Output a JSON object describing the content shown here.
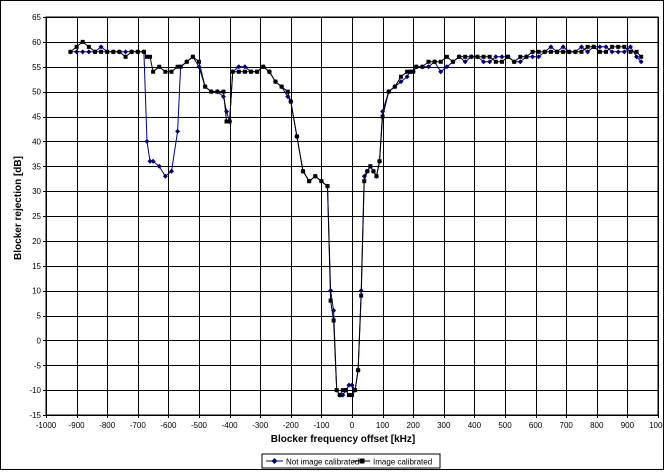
{
  "chart_data": {
    "type": "line",
    "title": "",
    "xlabel": "Blocker frequency offset [kHz]",
    "ylabel": "Blocker rejection [dB]",
    "xlim": [
      -1000,
      1000
    ],
    "ylim": [
      -15,
      65
    ],
    "x_ticks": [
      -1000,
      -900,
      -800,
      -700,
      -600,
      -500,
      -400,
      -300,
      -200,
      -100,
      0,
      100,
      200,
      300,
      400,
      500,
      600,
      700,
      800,
      900,
      1000
    ],
    "y_ticks": [
      -15,
      -10,
      -5,
      0,
      5,
      10,
      15,
      20,
      25,
      30,
      35,
      40,
      45,
      50,
      55,
      60,
      65
    ],
    "grid": true,
    "legend_position": "bottom-center",
    "colors": {
      "not_calibrated": "#000080",
      "calibrated": "#000000",
      "grid": "#000000"
    },
    "series": [
      {
        "name": "Not image calibrated",
        "marker": "diamond",
        "x": [
          -920,
          -900,
          -880,
          -860,
          -840,
          -820,
          -800,
          -780,
          -760,
          -740,
          -720,
          -700,
          -680,
          -670,
          -660,
          -650,
          -630,
          -610,
          -590,
          -570,
          -560,
          -540,
          -520,
          -500,
          -480,
          -460,
          -440,
          -420,
          -410,
          -400,
          -390,
          -370,
          -350,
          -330,
          -310,
          -290,
          -270,
          -250,
          -230,
          -210,
          -200,
          -180,
          -160,
          -140,
          -120,
          -100,
          -80,
          -70,
          -60,
          -50,
          -40,
          -30,
          -20,
          -10,
          0,
          10,
          20,
          30,
          40,
          50,
          60,
          70,
          80,
          90,
          100,
          120,
          140,
          160,
          180,
          190,
          200,
          210,
          230,
          250,
          270,
          290,
          310,
          330,
          350,
          370,
          390,
          410,
          430,
          450,
          470,
          490,
          510,
          530,
          550,
          570,
          590,
          610,
          630,
          650,
          670,
          690,
          710,
          730,
          750,
          770,
          790,
          810,
          830,
          850,
          870,
          890,
          910,
          930,
          945
        ],
        "values": [
          58,
          58,
          58,
          58,
          58,
          59,
          58,
          58,
          58,
          58,
          58,
          58,
          58,
          40,
          36,
          36,
          35,
          33,
          34,
          42,
          55,
          56,
          57,
          55,
          51,
          50,
          50,
          49,
          46,
          44,
          54,
          55,
          55,
          54,
          54,
          55,
          54,
          52,
          51,
          49,
          48,
          41,
          34,
          32,
          33,
          32,
          31,
          10,
          6,
          -10,
          -11,
          -11,
          -10,
          -9,
          -9,
          -10,
          -6,
          10,
          33,
          34,
          35,
          34,
          33,
          36,
          46,
          50,
          51,
          52,
          53,
          54,
          54,
          55,
          55,
          55,
          56,
          54,
          55,
          56,
          57,
          56,
          57,
          57,
          56,
          56,
          57,
          57,
          57,
          56,
          56,
          57,
          57,
          57,
          58,
          59,
          58,
          59,
          58,
          58,
          59,
          58,
          59,
          59,
          59,
          58,
          58,
          58,
          59,
          57,
          56
        ]
      },
      {
        "name": "Image calibrated",
        "marker": "square",
        "x": [
          -920,
          -900,
          -880,
          -860,
          -840,
          -820,
          -800,
          -780,
          -760,
          -740,
          -720,
          -700,
          -680,
          -670,
          -660,
          -650,
          -630,
          -610,
          -590,
          -570,
          -560,
          -540,
          -520,
          -500,
          -480,
          -460,
          -440,
          -420,
          -410,
          -400,
          -390,
          -370,
          -350,
          -330,
          -310,
          -290,
          -270,
          -250,
          -230,
          -210,
          -200,
          -180,
          -160,
          -140,
          -120,
          -100,
          -80,
          -70,
          -60,
          -50,
          -40,
          -30,
          -20,
          -10,
          0,
          10,
          20,
          30,
          40,
          50,
          60,
          70,
          80,
          90,
          100,
          120,
          140,
          160,
          180,
          190,
          200,
          210,
          230,
          250,
          270,
          290,
          310,
          330,
          350,
          370,
          390,
          410,
          430,
          450,
          470,
          490,
          510,
          530,
          550,
          570,
          590,
          610,
          630,
          650,
          670,
          690,
          710,
          730,
          750,
          770,
          790,
          810,
          830,
          850,
          870,
          890,
          910,
          930,
          945
        ],
        "values": [
          58,
          59,
          60,
          59,
          58,
          58,
          58,
          58,
          58,
          57,
          58,
          58,
          58,
          57,
          57,
          54,
          55,
          54,
          54,
          55,
          55,
          56,
          57,
          56,
          51,
          50,
          50,
          50,
          44,
          44,
          54,
          54,
          54,
          54,
          54,
          55,
          54,
          52,
          51,
          50,
          48,
          41,
          34,
          32,
          33,
          32,
          31,
          8,
          4,
          -10,
          -11,
          -10,
          -10,
          -11,
          -11,
          -10,
          -6,
          9,
          32,
          34,
          35,
          34,
          33,
          36,
          45,
          50,
          51,
          53,
          54,
          54,
          54,
          55,
          55,
          56,
          56,
          56,
          57,
          56,
          57,
          57,
          57,
          57,
          57,
          57,
          56,
          56,
          57,
          56,
          57,
          57,
          58,
          58,
          58,
          58,
          58,
          58,
          58,
          58,
          58,
          59,
          59,
          58,
          58,
          59,
          59,
          59,
          58,
          58,
          57
        ]
      }
    ]
  }
}
